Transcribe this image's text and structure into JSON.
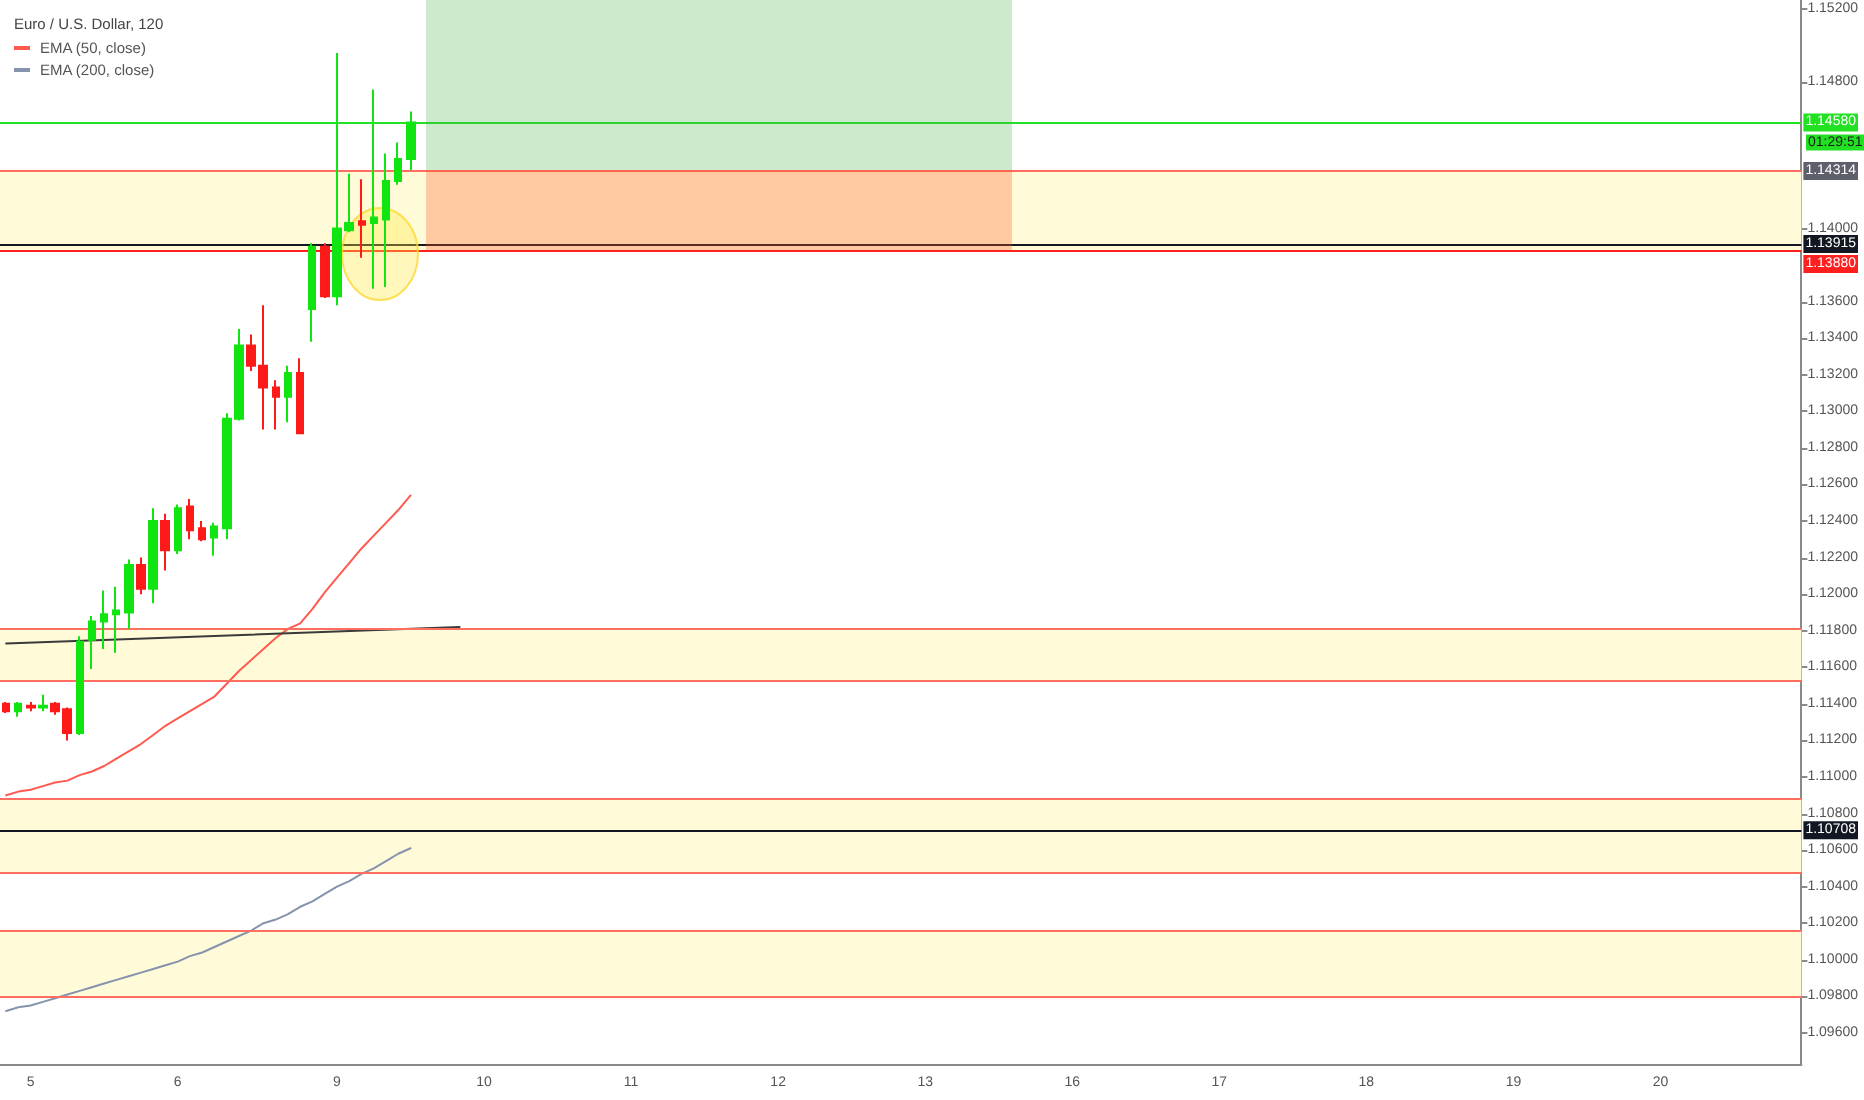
{
  "chart_data": {
    "type": "candlestick",
    "title": "Euro / U.S. Dollar, 120",
    "categories": [
      null,
      null,
      "5",
      null,
      null,
      null,
      null,
      null,
      null,
      null,
      null,
      null,
      null,
      null,
      "6",
      null,
      null,
      null,
      null,
      null,
      null,
      null,
      null,
      null,
      null,
      null,
      null,
      "9",
      null,
      null,
      null,
      null,
      null,
      null,
      null,
      null,
      null,
      null,
      null,
      "10",
      null,
      null,
      null,
      null,
      null,
      null,
      null,
      null,
      null,
      null,
      null,
      "11",
      null,
      null,
      null,
      null,
      null,
      null,
      null,
      null,
      null,
      null,
      null,
      "12",
      null,
      null,
      null,
      null,
      null,
      null,
      null,
      null,
      null,
      null,
      null,
      "13",
      null,
      null,
      null,
      null,
      null,
      null,
      null,
      null,
      null,
      null,
      null,
      "16",
      null,
      null,
      null,
      null,
      null,
      null,
      null,
      null,
      null,
      null,
      null,
      "17",
      null,
      null,
      null,
      null,
      null,
      null,
      null,
      null,
      null,
      null,
      null,
      "18",
      null,
      null,
      null,
      null,
      null,
      null,
      null,
      null,
      null,
      null,
      null,
      "19",
      null,
      null,
      null,
      null,
      null,
      null,
      null,
      null,
      null,
      null,
      null,
      "20",
      null,
      null,
      null,
      null,
      null,
      null,
      null,
      null,
      null,
      null,
      null
    ],
    "ohlc": [
      [
        1.114,
        1.1141,
        1.1135,
        1.1136
      ],
      [
        1.1136,
        1.1141,
        1.1133,
        1.114
      ],
      [
        1.1139,
        1.1141,
        1.1136,
        1.1138
      ],
      [
        1.1138,
        1.1145,
        1.1136,
        1.1139
      ],
      [
        1.114,
        1.1141,
        1.1134,
        1.1136
      ],
      [
        1.1137,
        1.1138,
        1.112,
        1.1124
      ],
      [
        1.1124,
        1.1177,
        1.1123,
        1.1174
      ],
      [
        1.1175,
        1.1188,
        1.1159,
        1.1185
      ],
      [
        1.1185,
        1.1202,
        1.117,
        1.1189
      ],
      [
        1.1189,
        1.1204,
        1.1168,
        1.1191
      ],
      [
        1.119,
        1.1219,
        1.1181,
        1.1216
      ],
      [
        1.1216,
        1.122,
        1.12,
        1.1203
      ],
      [
        1.1203,
        1.1247,
        1.1195,
        1.124
      ],
      [
        1.124,
        1.1244,
        1.1213,
        1.1224
      ],
      [
        1.1224,
        1.1249,
        1.1222,
        1.1247
      ],
      [
        1.1248,
        1.1252,
        1.123,
        1.1235
      ],
      [
        1.1236,
        1.124,
        1.1229,
        1.123
      ],
      [
        1.1231,
        1.1239,
        1.1221,
        1.1237
      ],
      [
        1.1236,
        1.1299,
        1.123,
        1.1296
      ],
      [
        1.1296,
        1.1345,
        1.1295,
        1.1336
      ],
      [
        1.1336,
        1.1342,
        1.1322,
        1.1325
      ],
      [
        1.1325,
        1.1358,
        1.129,
        1.1313
      ],
      [
        1.1313,
        1.1317,
        1.129,
        1.1308
      ],
      [
        1.1308,
        1.1325,
        1.1294,
        1.1321
      ],
      [
        1.1321,
        1.1329,
        1.1288,
        1.1288
      ],
      [
        1.1356,
        1.1392,
        1.1338,
        1.139
      ],
      [
        1.139,
        1.1392,
        1.1362,
        1.1363
      ],
      [
        1.1363,
        1.1496,
        1.1358,
        1.14
      ],
      [
        1.1399,
        1.143,
        1.1398,
        1.1403
      ],
      [
        1.1404,
        1.1427,
        1.1384,
        1.1402
      ],
      [
        1.1403,
        1.1476,
        1.1367,
        1.1406
      ],
      [
        1.1405,
        1.1441,
        1.1368,
        1.1426
      ],
      [
        1.1426,
        1.1447,
        1.1424,
        1.1438
      ],
      [
        1.1438,
        1.1464,
        1.1432,
        1.1458
      ],
      null,
      null,
      null,
      null,
      null,
      null,
      null,
      null,
      null,
      null,
      null,
      null,
      null,
      null,
      null,
      null,
      null,
      null,
      null,
      null,
      null,
      null,
      null,
      null,
      null,
      null,
      null,
      null,
      null,
      null,
      null,
      null,
      null,
      null,
      null,
      null,
      null,
      null,
      null,
      null,
      null,
      null,
      null,
      null,
      null,
      null,
      null,
      null,
      null,
      null,
      null,
      null,
      null,
      null,
      null,
      null,
      null,
      null,
      null,
      null,
      null,
      null,
      null,
      null,
      null,
      null,
      null,
      null,
      null,
      null,
      null,
      null,
      null,
      null,
      null,
      null,
      null,
      null,
      null,
      null,
      null,
      null,
      null,
      null,
      null,
      null,
      null,
      null,
      null,
      null,
      null,
      null,
      null,
      null,
      null,
      null,
      null,
      null,
      null,
      null,
      null,
      null,
      null,
      null,
      null,
      null,
      null,
      null,
      null,
      null,
      null,
      null,
      null
    ],
    "colors": [
      "#ff1a1a",
      "#11e511",
      "#ff1a1a",
      "#11e511",
      "#ff1a1a",
      "#ff1a1a",
      "#11e511",
      "#11e511",
      "#11e511",
      "#11e511",
      "#11e511",
      "#ff1a1a",
      "#11e511",
      "#ff1a1a",
      "#11e511",
      "#ff1a1a",
      "#ff1a1a",
      "#11e511",
      "#11e511",
      "#11e511",
      "#ff1a1a",
      "#ff1a1a",
      "#ff1a1a",
      "#11e511",
      "#ff1a1a",
      "#11e511",
      "#ff1a1a",
      "#11e511",
      "#11e511",
      "#ff1a1a",
      "#11e511",
      "#11e511",
      "#11e511",
      "#11e511",
      null,
      null,
      null,
      null,
      null,
      null,
      null,
      null,
      null,
      null,
      null,
      null,
      null,
      null,
      null,
      null,
      null,
      null,
      null,
      null,
      null,
      null,
      null,
      null,
      null,
      null,
      null,
      null,
      null,
      null,
      null,
      null,
      null,
      null,
      null,
      null,
      null,
      null,
      null,
      null,
      null,
      null,
      null,
      null,
      null,
      null,
      null,
      null,
      null,
      null,
      null,
      null,
      null,
      null,
      null,
      null,
      null,
      null,
      null,
      null,
      null,
      null,
      null,
      null,
      null,
      null,
      null,
      null,
      null,
      null,
      null,
      null,
      null,
      null,
      null,
      null,
      null,
      null,
      null,
      null,
      null,
      null,
      null,
      null,
      null,
      null,
      null,
      null,
      null,
      null,
      null,
      null,
      null,
      null,
      null,
      null,
      null,
      null,
      null,
      null,
      null,
      null,
      null,
      null,
      null,
      null,
      null,
      null,
      null,
      null,
      null,
      null,
      null
    ],
    "series": [
      {
        "name": "EMA (50, close)",
        "type": "line",
        "color": "#ff5a4f",
        "values": [
          1.109,
          1.1092,
          1.1093,
          1.1095,
          1.1097,
          1.1098,
          1.1101,
          1.1103,
          1.1106,
          1.111,
          1.1114,
          1.1118,
          1.1123,
          1.1128,
          1.1132,
          1.1136,
          1.114,
          1.1144,
          1.1151,
          1.1158,
          1.1164,
          1.117,
          1.1176,
          1.1181,
          1.1184,
          1.1192,
          1.1201,
          1.1209,
          1.1217,
          1.1225,
          1.1232,
          1.1239,
          1.1246,
          1.1254,
          null,
          null,
          null,
          null,
          null,
          null,
          null,
          null,
          null,
          null,
          null,
          null,
          null,
          null,
          null,
          null,
          null,
          null,
          null,
          null,
          null,
          null,
          null,
          null,
          null,
          null,
          null,
          null,
          null,
          null,
          null,
          null,
          null,
          null,
          null,
          null,
          null,
          null,
          null,
          null,
          null,
          null,
          null,
          null,
          null,
          null,
          null,
          null,
          null,
          null,
          null,
          null,
          null,
          null,
          null,
          null,
          null,
          null,
          null,
          null,
          null,
          null,
          null,
          null,
          null,
          null,
          null,
          null,
          null,
          null,
          null,
          null,
          null,
          null,
          null,
          null,
          null,
          null,
          null,
          null,
          null,
          null,
          null,
          null,
          null,
          null,
          null,
          null,
          null,
          null,
          null,
          null,
          null,
          null,
          null,
          null,
          null,
          null,
          null,
          null,
          null,
          null,
          null,
          null,
          null,
          null,
          null,
          null,
          null,
          null,
          null,
          null,
          null
        ]
      },
      {
        "name": "EMA (200, close)",
        "type": "line",
        "color": "#8593ad",
        "values": [
          1.0972,
          1.0974,
          1.0975,
          1.0977,
          1.0979,
          1.0981,
          1.0983,
          1.0985,
          1.0987,
          1.0989,
          1.0991,
          1.0993,
          1.0995,
          1.0997,
          1.0999,
          1.1002,
          1.1004,
          1.1007,
          1.101,
          1.1013,
          1.1016,
          1.102,
          1.1022,
          1.1025,
          1.1029,
          1.1032,
          1.1036,
          1.104,
          1.1043,
          1.1047,
          1.105,
          1.1054,
          1.1058,
          1.1061,
          null,
          null,
          null,
          null,
          null,
          null,
          null,
          null,
          null,
          null,
          null,
          null,
          null,
          null,
          null,
          null,
          null,
          null,
          null,
          null,
          null,
          null,
          null,
          null,
          null,
          null,
          null,
          null,
          null,
          null,
          null,
          null,
          null,
          null,
          null,
          null,
          null,
          null,
          null,
          null,
          null,
          null,
          null,
          null,
          null,
          null,
          null,
          null,
          null,
          null,
          null,
          null,
          null,
          null,
          null,
          null,
          null,
          null,
          null,
          null,
          null,
          null,
          null,
          null,
          null,
          null,
          null,
          null,
          null,
          null,
          null,
          null,
          null,
          null,
          null,
          null,
          null,
          null,
          null,
          null,
          null,
          null,
          null,
          null,
          null,
          null,
          null,
          null,
          null,
          null,
          null,
          null,
          null,
          null,
          null,
          null,
          null,
          null,
          null,
          null,
          null,
          null,
          null,
          null,
          null,
          null,
          null,
          null,
          null,
          null,
          null,
          null,
          null
        ]
      },
      {
        "type": "line",
        "color": "#3a3a3a",
        "values": [
          1.1173,
          null,
          null,
          null,
          null,
          null,
          null,
          null,
          null,
          null,
          null,
          null,
          null,
          null,
          null,
          null,
          null,
          null,
          null,
          null,
          null,
          null,
          null,
          null,
          null,
          null,
          null,
          null,
          null,
          null,
          null,
          null,
          null,
          null,
          null,
          null,
          null,
          1.1182,
          null,
          null,
          null,
          null,
          null,
          null,
          null,
          null,
          null,
          null,
          null,
          null,
          null,
          null,
          null,
          null,
          null,
          null,
          null,
          null,
          null,
          null,
          null,
          null,
          null,
          null,
          null,
          null,
          null,
          null,
          null,
          null,
          null,
          null,
          null,
          null,
          null,
          null,
          null,
          null,
          null,
          null,
          null,
          null,
          null,
          null,
          null,
          null,
          null,
          null,
          null,
          null,
          null,
          null,
          null,
          null,
          null,
          null,
          null,
          null,
          null,
          null,
          null,
          null,
          null,
          null,
          null,
          null,
          null,
          null,
          null,
          null,
          null,
          null,
          null,
          null,
          null,
          null,
          null,
          null,
          null,
          null,
          null,
          null,
          null,
          null,
          null,
          null,
          null,
          null,
          null,
          null,
          null,
          null,
          null,
          null,
          null,
          null,
          null,
          null,
          null,
          null,
          null,
          null,
          null,
          null,
          null,
          null,
          null
        ]
      }
    ],
    "ylim": [
      1.0943,
      1.1525
    ],
    "yticks": [
      {
        "value": 1.152,
        "label": "1.15200"
      },
      {
        "value": 1.148,
        "label": "1.14800"
      },
      {
        "value": 1.14,
        "label": "1.14000"
      },
      {
        "value": 1.136,
        "label": "1.13600"
      },
      {
        "value": 1.134,
        "label": "1.13400"
      },
      {
        "value": 1.132,
        "label": "1.13200"
      },
      {
        "value": 1.13,
        "label": "1.13000"
      },
      {
        "value": 1.128,
        "label": "1.12800"
      },
      {
        "value": 1.126,
        "label": "1.12600"
      },
      {
        "value": 1.124,
        "label": "1.12400"
      },
      {
        "value": 1.122,
        "label": "1.12200"
      },
      {
        "value": 1.12,
        "label": "1.12000"
      },
      {
        "value": 1.118,
        "label": "1.11800"
      },
      {
        "value": 1.116,
        "label": "1.11600"
      },
      {
        "value": 1.114,
        "label": "1.11400"
      },
      {
        "value": 1.112,
        "label": "1.11200"
      },
      {
        "value": 1.11,
        "label": "1.11000"
      },
      {
        "value": 1.108,
        "label": "1.10800"
      },
      {
        "value": 1.106,
        "label": "1.10600"
      },
      {
        "value": 1.104,
        "label": "1.10400"
      },
      {
        "value": 1.102,
        "label": "1.10200"
      },
      {
        "value": 1.1,
        "label": "1.10000"
      },
      {
        "value": 1.098,
        "label": "1.09800"
      },
      {
        "value": 1.096,
        "label": "1.09600"
      }
    ],
    "ref_lines": [
      {
        "axis": "y",
        "value": 1.1458,
        "label": "1.14580",
        "color": "#22e022"
      },
      {
        "axis": "y",
        "value": 1.14314,
        "label": "1.14314",
        "color": "#5d606b"
      },
      {
        "axis": "y",
        "value": 1.1432,
        "color": "#ff6e61"
      },
      {
        "axis": "y",
        "value": 1.13915,
        "label": "1.13915",
        "color": "#131722"
      },
      {
        "axis": "y",
        "value": 1.1388,
        "label": "1.13880",
        "color": "#ff1f1f"
      },
      {
        "axis": "y",
        "value": 1.1181,
        "color": "#ff6e61"
      },
      {
        "axis": "y",
        "value": 1.1153,
        "color": "#ff6e61"
      },
      {
        "axis": "y",
        "value": 1.1088,
        "color": "#ff6e61"
      },
      {
        "axis": "y",
        "value": 1.10708,
        "label": "1.10708",
        "color": "#131722"
      },
      {
        "axis": "y",
        "value": 1.1048,
        "color": "#ff6e61"
      },
      {
        "axis": "y",
        "value": 1.1016,
        "color": "#ff6e61"
      },
      {
        "axis": "y",
        "value": 1.098,
        "color": "#ff6e61"
      }
    ],
    "bands": [
      {
        "axis": "y",
        "from": 1.1388,
        "to": 1.1432,
        "color": "#fffbd9"
      },
      {
        "axis": "y",
        "from": 1.1153,
        "to": 1.1181,
        "color": "#fffbd9"
      },
      {
        "axis": "y",
        "from": 1.1048,
        "to": 1.1088,
        "color": "#fffbd9"
      },
      {
        "axis": "y",
        "from": 1.098,
        "to": 1.1016,
        "color": "#fffbd9"
      }
    ],
    "annotations": [
      "01:29:51"
    ],
    "legend": "top left",
    "marker": "none",
    "grid": false
  }
}
